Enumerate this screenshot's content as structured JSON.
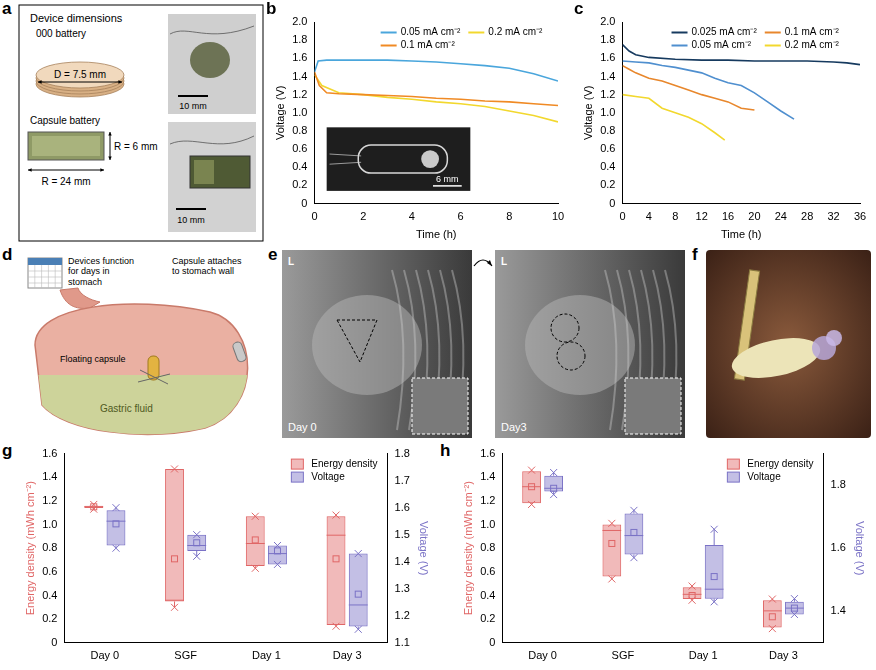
{
  "panel_a": {
    "letter": "a",
    "heading": "Device dimensions",
    "coin": {
      "name": "000 battery",
      "diameter": "D = 7.5 mm"
    },
    "capsule": {
      "name": "Capsule battery",
      "height": "R = 6 mm",
      "length": "R = 24 mm"
    },
    "photo_scale_bars": [
      "10 mm",
      "10 mm"
    ]
  },
  "panel_d": {
    "letter": "d",
    "calendar_caption": "Devices function for days in stomach",
    "labels": {
      "wall": "Capsule attaches to stomach wall",
      "floating": "Floating capsule",
      "fluid": "Gastric fluid"
    }
  },
  "panel_e": {
    "letter": "e",
    "images": [
      {
        "marker": "L",
        "caption": "Day 0"
      },
      {
        "marker": "L",
        "caption": "Day3"
      }
    ]
  },
  "panel_f": {
    "letter": "f"
  },
  "chart_data": [
    {
      "panel": "b",
      "type": "line",
      "x_label": "Time (h)",
      "y_label": "Voltage (V)",
      "xlim": [
        0,
        10
      ],
      "xticks": [
        0,
        2,
        4,
        6,
        8,
        10
      ],
      "ylim": [
        0,
        2
      ],
      "yticks": [
        0,
        0.2,
        0.4,
        0.6,
        0.8,
        {
          "value": 1,
          "label": "1.0"
        },
        1.2,
        1.4,
        1.6,
        1.8,
        {
          "value": 2,
          "label": "2.0"
        }
      ],
      "grid": false,
      "legend": "top right",
      "inset_scale": "6 mm",
      "series": [
        {
          "name": "0.05 mA cm⁻²",
          "color": "#4aa6dc",
          "x": [
            0,
            0.15,
            0.5,
            1,
            2,
            3,
            4,
            5,
            6,
            7,
            8,
            9,
            10
          ],
          "values": [
            1.45,
            1.57,
            1.58,
            1.58,
            1.58,
            1.58,
            1.57,
            1.56,
            1.54,
            1.52,
            1.49,
            1.43,
            1.35
          ]
        },
        {
          "name": "0.1 mA cm⁻²",
          "color": "#f08a24",
          "x": [
            0,
            0.2,
            0.5,
            1,
            2,
            3,
            4,
            5,
            6,
            7,
            8,
            9,
            10
          ],
          "values": [
            1.45,
            1.3,
            1.22,
            1.21,
            1.2,
            1.19,
            1.18,
            1.16,
            1.15,
            1.13,
            1.12,
            1.1,
            1.08
          ]
        },
        {
          "name": "0.2 mA cm⁻²",
          "color": "#f2d82e",
          "x": [
            0,
            0.3,
            1,
            2,
            3,
            4,
            5,
            6,
            7,
            8,
            9,
            10
          ],
          "values": [
            1.42,
            1.3,
            1.22,
            1.2,
            1.17,
            1.15,
            1.12,
            1.1,
            1.07,
            1.02,
            0.97,
            0.9
          ]
        }
      ]
    },
    {
      "panel": "c",
      "type": "line",
      "x_label": "Time (h)",
      "y_label": "Voltage (V)",
      "xlim": [
        0,
        36
      ],
      "xticks": [
        0,
        4,
        8,
        12,
        16,
        20,
        24,
        28,
        32,
        36
      ],
      "ylim": [
        0,
        2
      ],
      "yticks": [
        0,
        0.2,
        0.4,
        0.6,
        0.8,
        {
          "value": 1,
          "label": "1.0"
        },
        1.2,
        1.4,
        1.6,
        1.8,
        {
          "value": 2,
          "label": "2.0"
        }
      ],
      "grid": false,
      "legend": "top right",
      "series": [
        {
          "name": "0.025 mA cm⁻²",
          "color": "#163a5f",
          "x": [
            0,
            1,
            2,
            4,
            8,
            12,
            16,
            20,
            24,
            28,
            32,
            34,
            36
          ],
          "values": [
            1.75,
            1.68,
            1.64,
            1.61,
            1.59,
            1.58,
            1.58,
            1.57,
            1.57,
            1.57,
            1.56,
            1.55,
            1.53
          ]
        },
        {
          "name": "0.05 mA cm⁻²",
          "color": "#4f8fcf",
          "x": [
            0,
            2,
            4,
            6,
            8,
            10,
            12,
            14,
            16,
            18,
            20,
            22,
            24,
            26
          ],
          "values": [
            1.57,
            1.56,
            1.55,
            1.52,
            1.5,
            1.47,
            1.44,
            1.38,
            1.33,
            1.3,
            1.22,
            1.12,
            1.02,
            0.93
          ]
        },
        {
          "name": "0.1 mA cm⁻²",
          "color": "#e8872c",
          "x": [
            0,
            1,
            2,
            4,
            6,
            8,
            10,
            12,
            14,
            16,
            18,
            20
          ],
          "values": [
            1.52,
            1.48,
            1.44,
            1.38,
            1.35,
            1.3,
            1.25,
            1.2,
            1.16,
            1.12,
            1.05,
            1.03
          ]
        },
        {
          "name": "0.2 mA cm⁻²",
          "color": "#f2d82e",
          "x": [
            0,
            2,
            4,
            6,
            8,
            10,
            12,
            14,
            15.5
          ],
          "values": [
            1.2,
            1.18,
            1.16,
            1.05,
            1.0,
            0.95,
            0.88,
            0.78,
            0.7
          ]
        }
      ]
    },
    {
      "panel": "g",
      "type": "box",
      "categories": [
        "Day 0",
        "SGF",
        "Day 1",
        "Day 3"
      ],
      "y_label": "Energy density (mWh cm⁻²)",
      "y2_label": "Voltage (V)",
      "ylim": [
        0,
        1.6
      ],
      "yticks": [
        0,
        0.2,
        0.4,
        0.6,
        0.8,
        {
          "value": 1,
          "label": "1.0"
        },
        1.2,
        1.4,
        1.6
      ],
      "y2lim": [
        1.1,
        1.8
      ],
      "y2ticks": [
        1.1,
        1.2,
        1.3,
        1.4,
        1.5,
        1.6,
        1.7,
        1.8
      ],
      "grid": false,
      "legend": "top right",
      "series": [
        {
          "name": "Energy density",
          "color": "#e06666",
          "boxes": [
            {
              "min": 1.13,
              "q1": 1.14,
              "median": 1.15,
              "q3": 1.16,
              "max": 1.17,
              "mean": 1.15
            },
            {
              "min": 0.3,
              "q1": 0.35,
              "median": 0.36,
              "q3": 1.47,
              "max": 1.47,
              "mean": 0.71
            },
            {
              "min": 0.63,
              "q1": 0.65,
              "median": 0.84,
              "q3": 1.07,
              "max": 1.07,
              "mean": 0.87
            },
            {
              "min": 0.14,
              "q1": 0.15,
              "median": 0.91,
              "q3": 1.07,
              "max": 1.08,
              "mean": 0.71
            }
          ]
        },
        {
          "name": "Voltage",
          "color": "#7a72c6",
          "axis": "y2",
          "boxes": [
            {
              "min": 1.45,
              "q1": 1.46,
              "median": 1.55,
              "q3": 1.59,
              "max": 1.6,
              "mean": 1.54
            },
            {
              "min": 1.42,
              "q1": 1.44,
              "median": 1.46,
              "q3": 1.5,
              "max": 1.5,
              "mean": 1.47
            },
            {
              "min": 1.39,
              "q1": 1.39,
              "median": 1.43,
              "q3": 1.46,
              "max": 1.46,
              "mean": 1.44
            },
            {
              "min": 1.15,
              "q1": 1.16,
              "median": 1.24,
              "q3": 1.43,
              "max": 1.43,
              "mean": 1.28
            }
          ]
        }
      ]
    },
    {
      "panel": "h",
      "type": "box",
      "categories": [
        "Day 0",
        "SGF",
        "Day 1",
        "Day 3"
      ],
      "y_label": "Energy density (mWh cm⁻²)",
      "y2_label": "Voltage (V)",
      "ylim": [
        0,
        1.6
      ],
      "yticks": [
        0,
        0.2,
        0.4,
        0.6,
        0.8,
        {
          "value": 1,
          "label": "1.0"
        },
        1.2,
        1.4,
        1.6
      ],
      "y2lim": [
        1.3,
        1.9
      ],
      "y2ticks": [
        1.4,
        1.6,
        1.8
      ],
      "grid": false,
      "legend": "top right",
      "series": [
        {
          "name": "Energy density",
          "color": "#e06666",
          "boxes": [
            {
              "min": 1.17,
              "q1": 1.18,
              "median": 1.32,
              "q3": 1.45,
              "max": 1.46,
              "mean": 1.32
            },
            {
              "min": 0.54,
              "q1": 0.56,
              "median": 0.95,
              "q3": 1.0,
              "max": 1.01,
              "mean": 0.84
            },
            {
              "min": 0.36,
              "q1": 0.37,
              "median": 0.41,
              "q3": 0.47,
              "max": 0.48,
              "mean": 0.4
            },
            {
              "min": 0.12,
              "q1": 0.13,
              "median": 0.27,
              "q3": 0.36,
              "max": 0.37,
              "mean": 0.22
            }
          ]
        },
        {
          "name": "Voltage",
          "color": "#7a72c6",
          "axis": "y2",
          "boxes": [
            {
              "min": 1.77,
              "q1": 1.78,
              "median": 1.79,
              "q3": 1.83,
              "max": 1.84,
              "mean": 1.79
            },
            {
              "min": 1.57,
              "q1": 1.58,
              "median": 1.64,
              "q3": 1.71,
              "max": 1.72,
              "mean": 1.65
            },
            {
              "min": 1.43,
              "q1": 1.44,
              "median": 1.47,
              "q3": 1.61,
              "max": 1.66,
              "mean": 1.51
            },
            {
              "min": 1.39,
              "q1": 1.39,
              "median": 1.41,
              "q3": 1.43,
              "max": 1.44,
              "mean": 1.41
            }
          ]
        }
      ]
    }
  ]
}
